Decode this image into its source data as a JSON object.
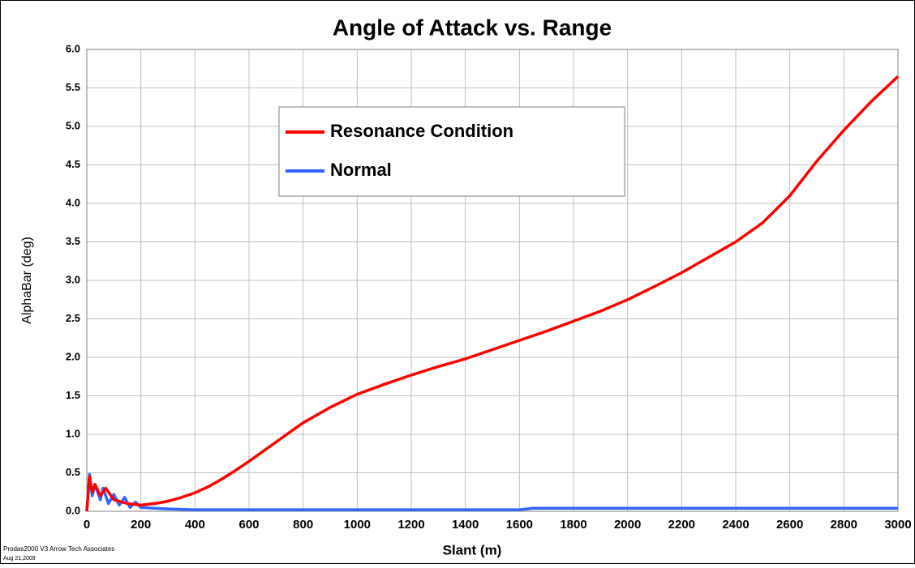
{
  "chart_data": {
    "type": "line",
    "title": "Angle of Attack vs. Range",
    "xlabel": "Slant (m)",
    "ylabel": "AlphaBar (deg)",
    "footer": [
      "Prodas2000 V3 Arrow Tech Associates",
      "Aug 21,2009"
    ],
    "xlim": [
      0,
      3000
    ],
    "xticks": [
      0,
      200,
      400,
      600,
      800,
      1000,
      1200,
      1400,
      1600,
      1800,
      2000,
      2200,
      2400,
      2600,
      2800,
      3000
    ],
    "ylim": [
      0,
      6
    ],
    "yticks": [
      {
        "value": 0,
        "label": "0.0"
      },
      0.5,
      {
        "value": 1,
        "label": "1.0"
      },
      1.5,
      {
        "value": 2,
        "label": "2.0"
      },
      2.5,
      {
        "value": 3,
        "label": "3.0"
      },
      3.5,
      {
        "value": 4,
        "label": "4.0"
      },
      4.5,
      {
        "value": 5,
        "label": "5.0"
      },
      5.5,
      {
        "value": 6,
        "label": "6.0"
      }
    ],
    "grid": true,
    "series": [
      {
        "name": "Resonance Condition",
        "color": "#ff0000",
        "x": [
          0,
          10,
          20,
          30,
          50,
          70,
          100,
          130,
          150,
          200,
          250,
          300,
          350,
          400,
          450,
          500,
          550,
          600,
          700,
          800,
          900,
          1000,
          1100,
          1200,
          1300,
          1400,
          1500,
          1600,
          1700,
          1800,
          1900,
          2000,
          2100,
          2200,
          2300,
          2400,
          2500,
          2600,
          2700,
          2800,
          2900,
          3000
        ],
        "values": [
          0,
          0.45,
          0.25,
          0.35,
          0.2,
          0.3,
          0.15,
          0.12,
          0.1,
          0.08,
          0.1,
          0.13,
          0.18,
          0.24,
          0.32,
          0.42,
          0.53,
          0.65,
          0.9,
          1.15,
          1.35,
          1.52,
          1.65,
          1.77,
          1.88,
          1.98,
          2.1,
          2.22,
          2.34,
          2.47,
          2.6,
          2.75,
          2.92,
          3.1,
          3.3,
          3.5,
          3.75,
          4.1,
          4.55,
          4.95,
          5.32,
          5.65
        ]
      },
      {
        "name": "Normal",
        "color": "#3366ff",
        "x": [
          0,
          10,
          20,
          30,
          50,
          60,
          80,
          100,
          120,
          140,
          160,
          180,
          200,
          250,
          300,
          400,
          500,
          1600,
          1650,
          3000
        ],
        "values": [
          0,
          0.48,
          0.2,
          0.35,
          0.15,
          0.3,
          0.1,
          0.22,
          0.08,
          0.18,
          0.05,
          0.12,
          0.05,
          0.04,
          0.03,
          0.02,
          0.02,
          0.02,
          0.04,
          0.04
        ]
      }
    ]
  }
}
